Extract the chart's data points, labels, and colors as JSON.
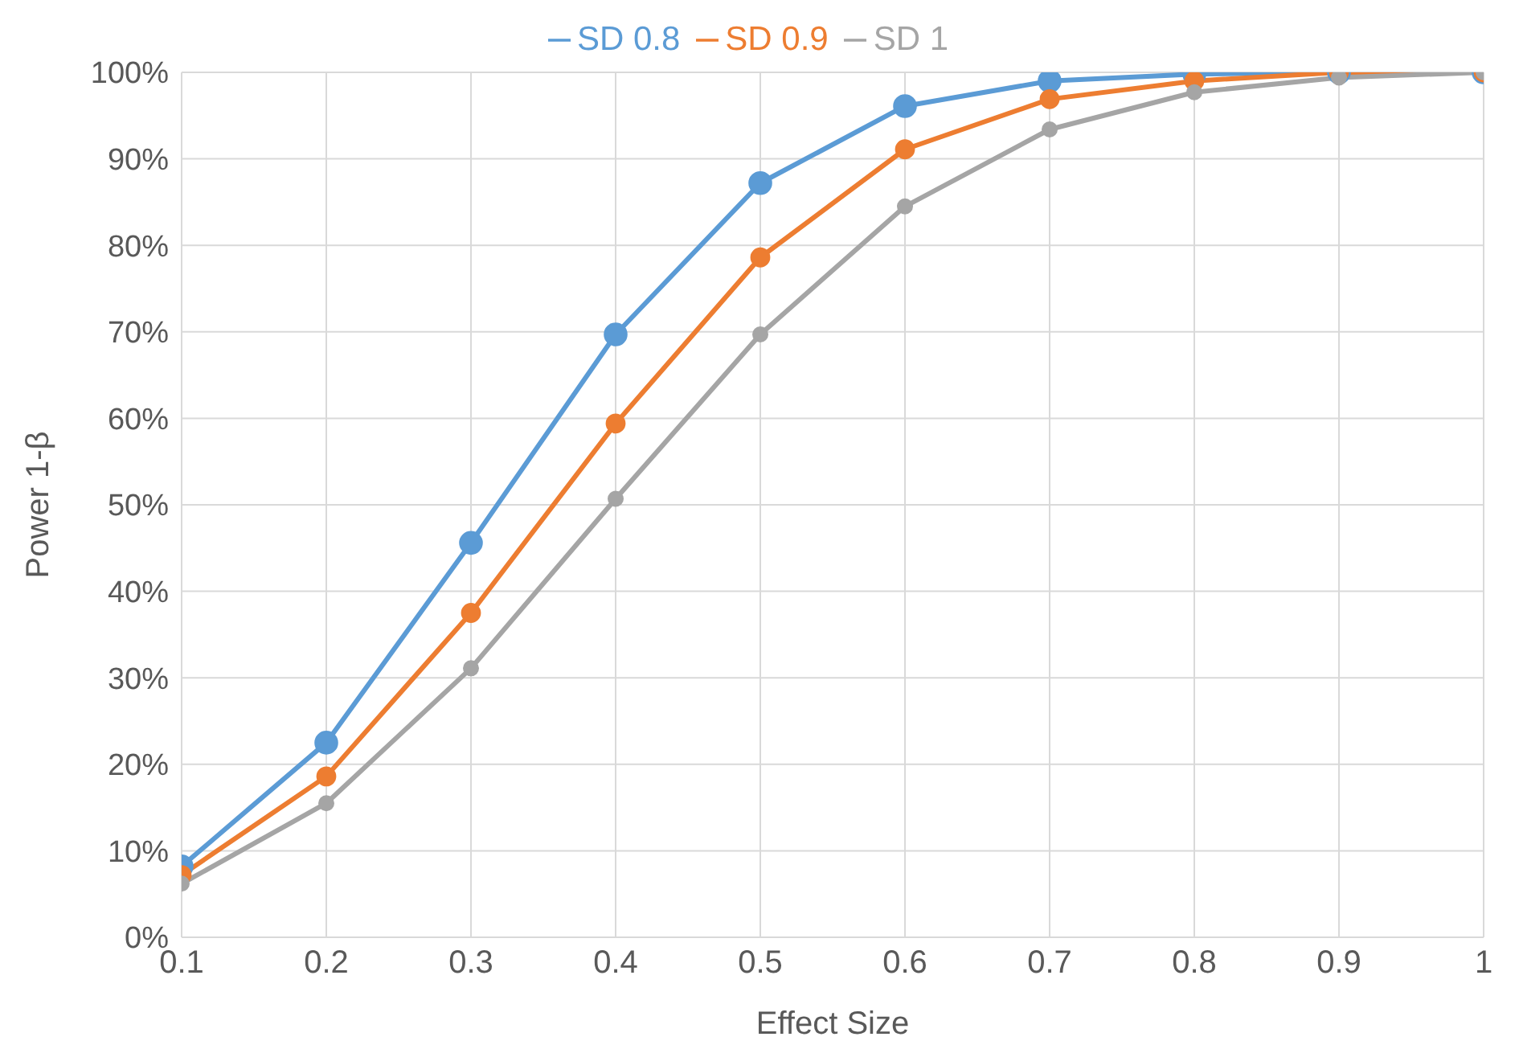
{
  "chart_data": {
    "type": "line",
    "xlabel": "Effect Size",
    "ylabel": "Power 1-β",
    "x": [
      0.1,
      0.2,
      0.3,
      0.4,
      0.5,
      0.6,
      0.7,
      0.8,
      0.9,
      1
    ],
    "series": [
      {
        "name": "SD 0.8",
        "color": "#5b9bd5",
        "values": [
          8.2,
          22.5,
          45.6,
          69.7,
          87.2,
          96.1,
          99.0,
          99.8,
          100,
          100
        ]
      },
      {
        "name": "SD 0.9",
        "color": "#ed7d31",
        "values": [
          7.2,
          18.6,
          37.5,
          59.4,
          78.6,
          91.1,
          96.9,
          99.0,
          100,
          100
        ]
      },
      {
        "name": "SD 1",
        "color": "#a5a5a5",
        "values": [
          6.2,
          15.5,
          31.1,
          50.7,
          69.7,
          84.5,
          93.4,
          97.7,
          99.4,
          100
        ]
      }
    ],
    "xlim": [
      0.1,
      1
    ],
    "xticks": [
      0.1,
      0.2,
      0.3,
      0.4,
      0.5,
      0.6,
      0.7,
      0.8,
      0.9,
      1
    ],
    "ylim": [
      0,
      100
    ],
    "yticks": [
      {
        "value": 0,
        "label": "0%"
      },
      {
        "value": 10,
        "label": "10%"
      },
      {
        "value": 20,
        "label": "20%"
      },
      {
        "value": 30,
        "label": "30%"
      },
      {
        "value": 40,
        "label": "40%"
      },
      {
        "value": 50,
        "label": "50%"
      },
      {
        "value": 60,
        "label": "60%"
      },
      {
        "value": 70,
        "label": "70%"
      },
      {
        "value": 80,
        "label": "80%"
      },
      {
        "value": 90,
        "label": "90%"
      },
      {
        "value": 100,
        "label": "100%"
      }
    ],
    "grid": true,
    "legend": "top",
    "marker": "circle",
    "line_style": "solid"
  }
}
